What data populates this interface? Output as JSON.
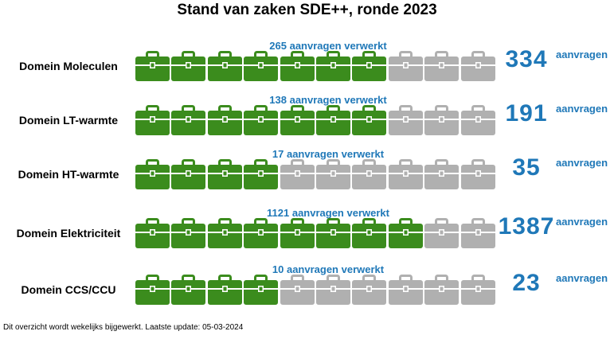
{
  "title": "Stand van zaken SDE++, ronde 2023",
  "colors": {
    "processed": "#3b8c1d",
    "pending": "#b0b0b0",
    "accent": "#1f78b8"
  },
  "icon": "briefcase-icon",
  "case_count": 10,
  "chart_data": {
    "type": "bar",
    "title": "Stand van zaken SDE++, ronde 2023",
    "categories": [
      "Domein Moleculen",
      "Domein LT-warmte",
      "Domein HT-warmte",
      "Domein Elektriciteit",
      "Domein CCS/CCU"
    ],
    "series": [
      {
        "name": "aanvragen verwerkt",
        "values": [
          265,
          138,
          17,
          1121,
          10
        ]
      }
    ],
    "totals": [
      334,
      191,
      35,
      1387,
      23
    ],
    "rows": [
      {
        "label": "Domein Moleculen",
        "processed_text": "265 aanvragen verwerkt",
        "total": "334",
        "unit": "aanvragen",
        "filled": 7
      },
      {
        "label": "Domein LT-warmte",
        "processed_text": "138 aanvragen verwerkt",
        "total": "191",
        "unit": "aanvragen",
        "filled": 7
      },
      {
        "label": "Domein HT-warmte",
        "processed_text": "17 aanvragen verwerkt",
        "total": "35",
        "unit": "aanvragen",
        "filled": 4
      },
      {
        "label": "Domein Elektriciteit",
        "processed_text": "1121 aanvragen verwerkt",
        "total": "1387",
        "unit": "aanvragen",
        "filled": 8
      },
      {
        "label": "Domein CCS/CCU",
        "processed_text": "10 aanvragen verwerkt",
        "total": "23",
        "unit": "aanvragen",
        "filled": 4
      }
    ]
  },
  "footnote": "Dit overzicht wordt wekelijks bijgewerkt. Laatste update:  05-03-2024"
}
